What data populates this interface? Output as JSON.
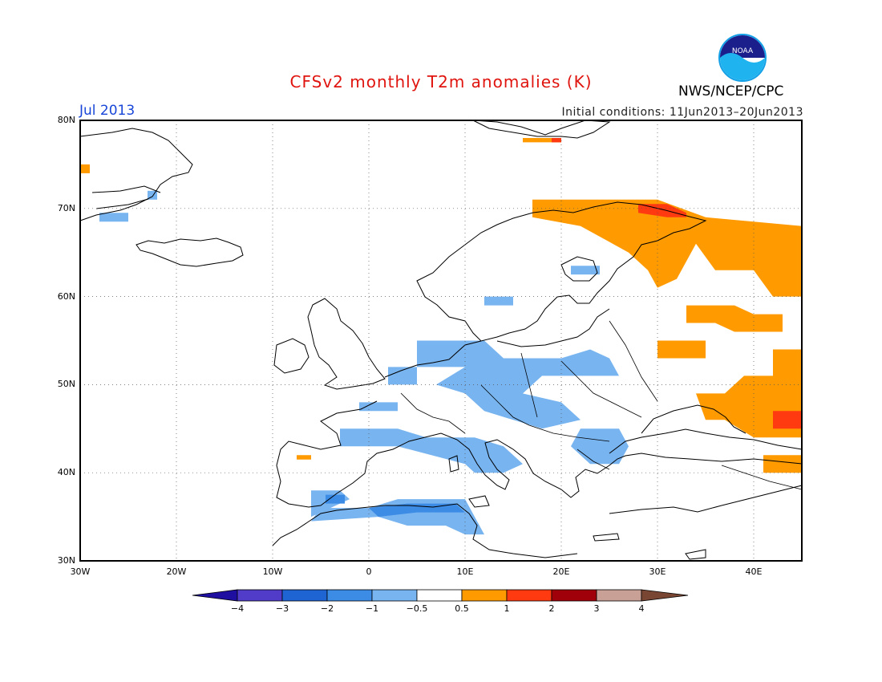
{
  "title": "CFSv2 monthly T2m anomalies (K)",
  "month_label": "Jul 2013",
  "initial_conditions": "Initial conditions: 11Jun2013–20Jun2013",
  "agency": "NWS/NCEP/CPC",
  "logo_text": "NOAA",
  "map": {
    "lon_range": [
      -30,
      45
    ],
    "lat_range": [
      30,
      80
    ],
    "lat_labels": [
      "80N",
      "70N",
      "60N",
      "50N",
      "40N",
      "30N"
    ],
    "lon_labels": [
      "30W",
      "20W",
      "10W",
      "0",
      "10E",
      "20E",
      "30E",
      "40E"
    ],
    "anomaly_regions": [
      {
        "name": "iceland-west-warm",
        "class": "0.5..1",
        "color": "#ff9a00",
        "poly": [
          [
            -30,
            75
          ],
          [
            -29,
            75
          ],
          [
            -29,
            74
          ],
          [
            -30,
            74
          ]
        ]
      },
      {
        "name": "svalbard-warm",
        "class": "0.5..1",
        "color": "#ff9a00",
        "poly": [
          [
            16,
            78
          ],
          [
            20,
            78
          ],
          [
            20,
            77.5
          ],
          [
            16,
            77.5
          ]
        ]
      },
      {
        "name": "svalbard-hot",
        "class": "1..2",
        "color": "#ff3a10",
        "poly": [
          [
            19,
            78
          ],
          [
            20,
            78
          ],
          [
            20,
            77.5
          ],
          [
            19,
            77.5
          ]
        ]
      },
      {
        "name": "north-russia-warm",
        "class": "0.5..1",
        "color": "#ff9a00",
        "poly": [
          [
            17,
            71
          ],
          [
            30,
            71
          ],
          [
            35,
            69
          ],
          [
            45,
            68
          ],
          [
            45,
            60
          ],
          [
            42,
            60
          ],
          [
            40,
            63
          ],
          [
            36,
            63
          ],
          [
            34,
            66
          ],
          [
            32,
            62
          ],
          [
            30,
            61
          ],
          [
            29,
            63
          ],
          [
            27,
            65
          ],
          [
            22,
            68
          ],
          [
            17,
            69
          ]
        ]
      },
      {
        "name": "north-russia-hot",
        "class": "1..2",
        "color": "#ff3a10",
        "poly": [
          [
            28,
            70.5
          ],
          [
            31,
            70.5
          ],
          [
            33,
            69.5
          ],
          [
            33,
            69
          ],
          [
            31,
            69
          ],
          [
            28,
            69.5
          ]
        ]
      },
      {
        "name": "russia-mid-warm",
        "class": "0.5..1",
        "color": "#ff9a00",
        "poly": [
          [
            33,
            59
          ],
          [
            38,
            59
          ],
          [
            40,
            58
          ],
          [
            43,
            58
          ],
          [
            43,
            56
          ],
          [
            38,
            56
          ],
          [
            36,
            57
          ],
          [
            33,
            57
          ]
        ]
      },
      {
        "name": "russia-south-warm",
        "class": "0.5..1",
        "color": "#ff9a00",
        "poly": [
          [
            30,
            55
          ],
          [
            35,
            55
          ],
          [
            35,
            53
          ],
          [
            30,
            53
          ]
        ]
      },
      {
        "name": "ukraine-warm",
        "class": "0.5..1",
        "color": "#ff9a00",
        "poly": [
          [
            42,
            54
          ],
          [
            45,
            54
          ],
          [
            45,
            44
          ],
          [
            40,
            44
          ],
          [
            37,
            46
          ],
          [
            35,
            46
          ],
          [
            34,
            49
          ],
          [
            37,
            49
          ],
          [
            39,
            51
          ],
          [
            42,
            51
          ]
        ]
      },
      {
        "name": "caucasus-hot",
        "class": "1..2",
        "color": "#ff3a10",
        "poly": [
          [
            42,
            47
          ],
          [
            45,
            47
          ],
          [
            45,
            45
          ],
          [
            42,
            45
          ]
        ]
      },
      {
        "name": "anatolia-warm",
        "class": "0.5..1",
        "color": "#ff9a00",
        "poly": [
          [
            41,
            42
          ],
          [
            45,
            42
          ],
          [
            45,
            40
          ],
          [
            41,
            40
          ]
        ]
      },
      {
        "name": "iberia-warm",
        "class": "0.5..1",
        "color": "#ff9a00",
        "poly": [
          [
            -7.5,
            42
          ],
          [
            -6,
            42
          ],
          [
            -6,
            41.5
          ],
          [
            -7.5,
            41.5
          ]
        ]
      },
      {
        "name": "greenland-east-cool",
        "class": "-1..-0.5",
        "color": "#78b4f0",
        "poly": [
          [
            -23,
            72
          ],
          [
            -22,
            72
          ],
          [
            -22,
            71
          ],
          [
            -23,
            71
          ]
        ]
      },
      {
        "name": "iceland-west-cool",
        "class": "-1..-0.5",
        "color": "#78b4f0",
        "poly": [
          [
            -28,
            69.5
          ],
          [
            -25,
            69.5
          ],
          [
            -25,
            68.5
          ],
          [
            -28,
            68.5
          ]
        ]
      },
      {
        "name": "scandinavia-cool",
        "class": "-1..-0.5",
        "color": "#78b4f0",
        "poly": [
          [
            12,
            60
          ],
          [
            15,
            60
          ],
          [
            15,
            59
          ],
          [
            12,
            59
          ]
        ]
      },
      {
        "name": "finland-cool",
        "class": "-1..-0.5",
        "color": "#78b4f0",
        "poly": [
          [
            21,
            63.5
          ],
          [
            24,
            63.5
          ],
          [
            24,
            62.5
          ],
          [
            21,
            62.5
          ]
        ]
      },
      {
        "name": "central-europe-cool",
        "class": "-1..-0.5",
        "color": "#78b4f0",
        "poly": [
          [
            5,
            55
          ],
          [
            12,
            55
          ],
          [
            14,
            53
          ],
          [
            20,
            53
          ],
          [
            23,
            54
          ],
          [
            25,
            53
          ],
          [
            26,
            51
          ],
          [
            22,
            51
          ],
          [
            18,
            51
          ],
          [
            16,
            49
          ],
          [
            20,
            48
          ],
          [
            22,
            46
          ],
          [
            18,
            45
          ],
          [
            15,
            46
          ],
          [
            12,
            47
          ],
          [
            10,
            49
          ],
          [
            7,
            50
          ],
          [
            10,
            52
          ],
          [
            5,
            52
          ]
        ]
      },
      {
        "name": "benelux-cool",
        "class": "-1..-0.5",
        "color": "#78b4f0",
        "poly": [
          [
            2,
            52
          ],
          [
            5,
            52
          ],
          [
            5,
            50
          ],
          [
            2,
            50
          ]
        ]
      },
      {
        "name": "france-cool",
        "class": "-1..-0.5",
        "color": "#78b4f0",
        "poly": [
          [
            -1,
            48
          ],
          [
            3,
            48
          ],
          [
            3,
            47
          ],
          [
            -1,
            47
          ]
        ]
      },
      {
        "name": "italy-cool",
        "class": "-1..-0.5",
        "color": "#78b4f0",
        "poly": [
          [
            -3,
            45
          ],
          [
            3,
            45
          ],
          [
            6,
            44
          ],
          [
            11,
            44
          ],
          [
            14,
            43
          ],
          [
            16,
            41
          ],
          [
            14,
            40
          ],
          [
            11,
            40
          ],
          [
            10,
            41
          ],
          [
            3,
            43
          ],
          [
            -3,
            43
          ]
        ]
      },
      {
        "name": "balkans-cool",
        "class": "-1..-0.5",
        "color": "#78b4f0",
        "poly": [
          [
            22,
            45
          ],
          [
            26,
            45
          ],
          [
            27,
            43
          ],
          [
            26,
            41
          ],
          [
            23,
            41
          ],
          [
            21,
            43
          ]
        ]
      },
      {
        "name": "iberia-cool",
        "class": "-1..-0.5",
        "color": "#78b4f0",
        "poly": [
          [
            -6,
            38
          ],
          [
            -3,
            38
          ],
          [
            -2,
            37
          ],
          [
            -4,
            36
          ],
          [
            -6,
            35
          ]
        ]
      },
      {
        "name": "north-africa-cool",
        "class": "-1..-0.5",
        "color": "#78b4f0",
        "poly": [
          [
            -5,
            36
          ],
          [
            0,
            36
          ],
          [
            3,
            37
          ],
          [
            10,
            37
          ],
          [
            11,
            35
          ],
          [
            12,
            33
          ],
          [
            10,
            33
          ],
          [
            8,
            34
          ],
          [
            4,
            34
          ],
          [
            1,
            35
          ],
          [
            -6,
            34.5
          ]
        ]
      },
      {
        "name": "algeria-cool",
        "class": "-2..-1",
        "color": "#3c8ce6",
        "poly": [
          [
            0,
            36
          ],
          [
            4,
            36.5
          ],
          [
            9,
            36.5
          ],
          [
            10,
            35.5
          ],
          [
            5,
            35.5
          ],
          [
            1,
            35
          ]
        ]
      },
      {
        "name": "iberia-cooler",
        "class": "-2..-1",
        "color": "#3c8ce6",
        "poly": [
          [
            -4.5,
            37.5
          ],
          [
            -2.5,
            37.5
          ],
          [
            -2.5,
            36.5
          ],
          [
            -4.5,
            36.5
          ]
        ]
      }
    ]
  },
  "colorbar": {
    "labels": [
      "−4",
      "−3",
      "−2",
      "−1",
      "−0.5",
      "0.5",
      "1",
      "2",
      "3",
      "4"
    ],
    "colors": [
      "#1e0fa0",
      "#503cc8",
      "#1e64d2",
      "#3c8ce6",
      "#78b4f0",
      "#ffffff",
      "#ff9a00",
      "#ff3a10",
      "#a0000a",
      "#c8a096",
      "#784632"
    ]
  }
}
